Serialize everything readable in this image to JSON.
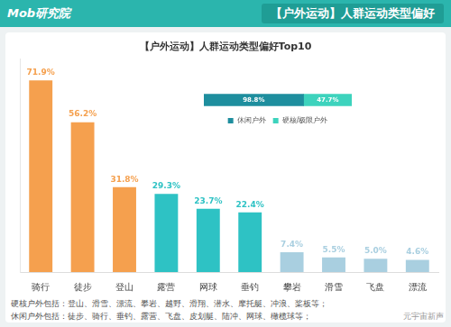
{
  "header": {
    "logo": "Mob研究院",
    "title": "【户外运动】人群运动类型偏好"
  },
  "chart_data": [
    {
      "type": "bar",
      "title": "【户外运动】人群运动类型偏好Top10",
      "categories": [
        "骑行",
        "徒步",
        "登山",
        "露营",
        "网球",
        "垂钓",
        "攀岩",
        "滑雪",
        "飞盘",
        "漂流"
      ],
      "values": [
        71.9,
        56.2,
        31.8,
        29.3,
        23.7,
        22.4,
        7.4,
        5.5,
        5.0,
        4.6
      ],
      "value_labels": [
        "71.9%",
        "56.2%",
        "31.8%",
        "29.3%",
        "23.7%",
        "22.4%",
        "7.4%",
        "5.5%",
        "5.0%",
        "4.6%"
      ],
      "colors": [
        "#f5a04e",
        "#f5a04e",
        "#f5a04e",
        "#2ec2c4",
        "#2ec2c4",
        "#2ec2c4",
        "#a9cfe0",
        "#a9cfe0",
        "#a9cfe0",
        "#a9cfe0"
      ],
      "ylim": [
        0,
        80
      ],
      "tick_labels": "x",
      "grid": false,
      "data_labels": true
    },
    {
      "type": "bar",
      "orientation": "horizontal",
      "stacked": true,
      "categories": [
        null
      ],
      "series": [
        {
          "name": "休闲户外",
          "color": "#1e8e9e",
          "values": [
            98.8
          ],
          "value_labels": [
            "98.8%"
          ]
        },
        {
          "name": "硬核/极限户外",
          "color": "#3dd3bd",
          "values": [
            47.7
          ],
          "value_labels": [
            "47.7%"
          ]
        }
      ],
      "xlim": [
        0,
        146.5
      ],
      "tick_labels": false,
      "grid": false,
      "legend": "bottom",
      "data_labels": true
    }
  ],
  "notes": [
    "硬核户外包括：登山、滑雪、漂流、攀岩、越野、滑翔、潜水、摩托艇、冲浪、桨板等；",
    "休闲户外包括：徒步、骑行、垂钓、露营、飞盘、皮划艇、陆冲、网球、橄榄球等；"
  ],
  "watermark": "元宇宙新声"
}
